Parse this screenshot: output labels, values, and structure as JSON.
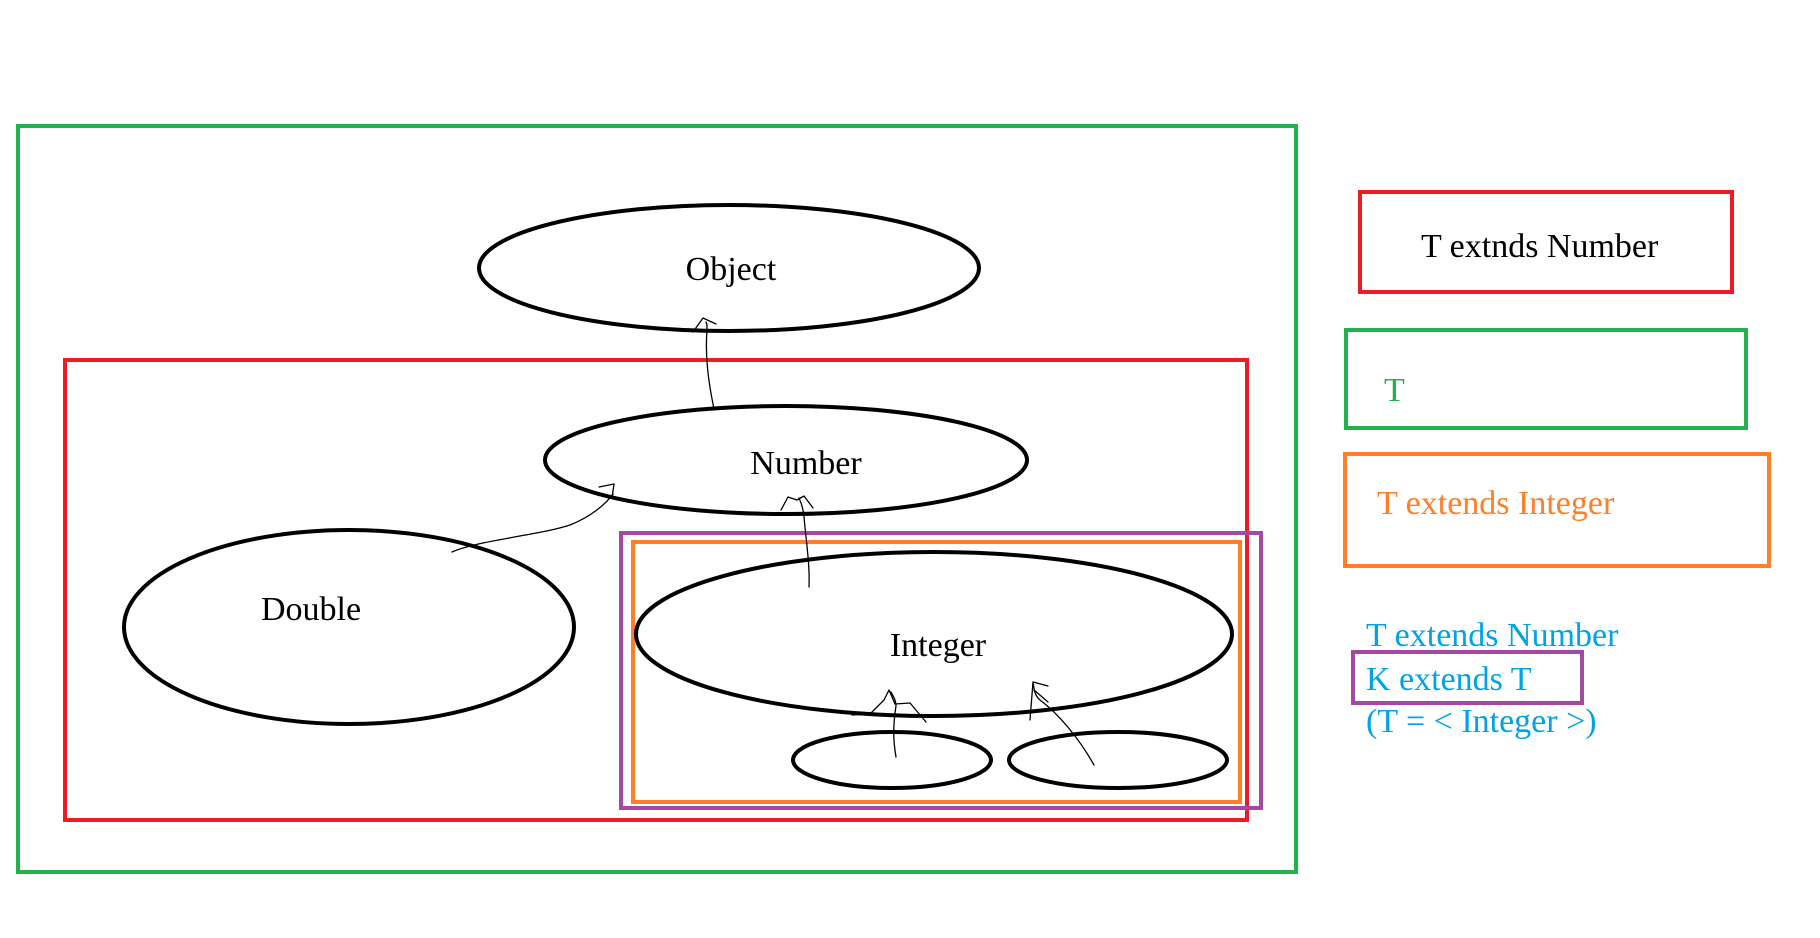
{
  "diagram": {
    "nodes": {
      "object": "Object",
      "number": "Number",
      "double": "Double",
      "integer": "Integer",
      "sub1": "",
      "sub2": ""
    }
  },
  "legend": {
    "red": "T extnds Number",
    "green": "T",
    "orange": "T extends Integer",
    "blue_line1": "T extends Number",
    "blue_line2": "K extends T",
    "blue_line3": "(T = < Integer >)"
  },
  "colors": {
    "green": "#22b14c",
    "red": "#ed1c24",
    "orange": "#ff7f27",
    "purple": "#a349a4",
    "blue": "#00a2e8",
    "black": "#000000"
  }
}
